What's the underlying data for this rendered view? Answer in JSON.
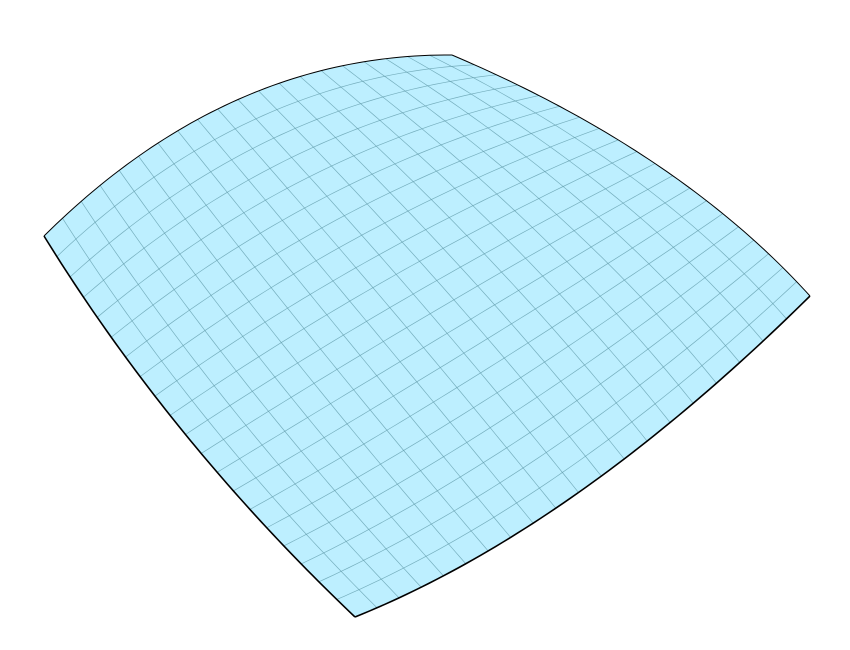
{
  "surface": {
    "shape": "saddle",
    "fill_color": "#bdefff",
    "grid_color": "#5f9aa8",
    "edge_color": "#000000",
    "background_color": "#ffffff",
    "grid_divisions_u": 20,
    "grid_divisions_v": 20
  }
}
